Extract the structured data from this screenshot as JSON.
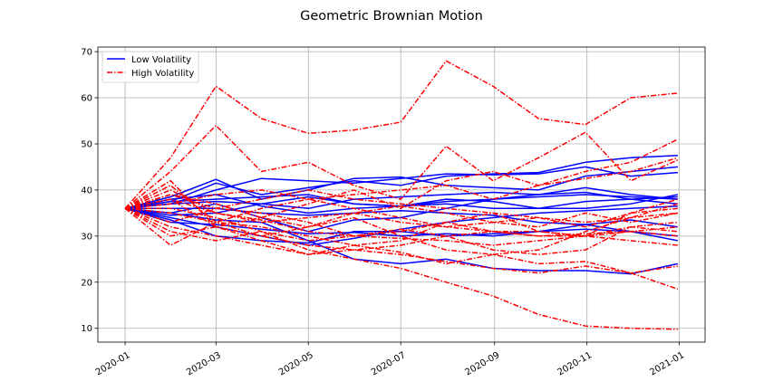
{
  "chart_data": {
    "type": "line",
    "title": "Geometric Brownian Motion",
    "xlabel": "",
    "ylabel": "",
    "x": [
      "2020-01-01",
      "2020-01-31",
      "2020-03-01",
      "2020-03-31",
      "2020-05-01",
      "2020-05-31",
      "2020-07-01",
      "2020-07-31",
      "2020-08-31",
      "2020-09-30",
      "2020-10-31",
      "2020-11-30",
      "2020-12-31"
    ],
    "xticks": [
      "2020-01",
      "2020-03",
      "2020-05",
      "2020-07",
      "2020-09",
      "2020-11",
      "2021-01"
    ],
    "xtick_dates": [
      "2020-01-01",
      "2020-03-01",
      "2020-05-01",
      "2020-07-01",
      "2020-09-01",
      "2020-11-01",
      "2021-01-01"
    ],
    "yticks": [
      10,
      20,
      30,
      40,
      50,
      60,
      70
    ],
    "xlim": [
      "2019-12-14",
      "2021-01-18"
    ],
    "ylim": [
      7,
      71
    ],
    "grid": true,
    "legend": {
      "location": "upper-left",
      "entries": [
        {
          "label": "Low Volatility",
          "color": "#0000ff",
          "style": "solid"
        },
        {
          "label": "High Volatility",
          "color": "#ff0000",
          "style": "dashdot"
        }
      ]
    },
    "groups": [
      {
        "name": "Low Volatility",
        "color": "#0000ff",
        "style": "solid",
        "series": [
          [
            36,
            37.5,
            41.5,
            39,
            40.5,
            42,
            41,
            43,
            43.5,
            43.8,
            46,
            47,
            47.5
          ],
          [
            36,
            38.5,
            42.3,
            38,
            40,
            42.5,
            42.8,
            41,
            40.5,
            40,
            43,
            44,
            45
          ],
          [
            36,
            37,
            40,
            42.5,
            42,
            41.5,
            42.5,
            43.5,
            43.3,
            43.5,
            45,
            43,
            43.8
          ],
          [
            36,
            35,
            37,
            34,
            31,
            33.5,
            34,
            36,
            38,
            39,
            40.5,
            39,
            38
          ],
          [
            36,
            34,
            32,
            30,
            28,
            29.5,
            31.5,
            33,
            34,
            35,
            35.5,
            36,
            36.5
          ],
          [
            36,
            37,
            37.5,
            37,
            36,
            38,
            38.5,
            39,
            39.5,
            39,
            39.5,
            38,
            37
          ],
          [
            36,
            33.5,
            30,
            29,
            28.5,
            31,
            31,
            30,
            30.5,
            31,
            32.5,
            33.5,
            32
          ],
          [
            36,
            35,
            33.5,
            33,
            29,
            25,
            24,
            25,
            23,
            22.5,
            22.5,
            21.8,
            24
          ],
          [
            36,
            34.5,
            35,
            37,
            38.5,
            37,
            36.5,
            38,
            37.5,
            36,
            36,
            37,
            39
          ],
          [
            36,
            38,
            39,
            36.5,
            35,
            36,
            36.5,
            37,
            36,
            36,
            37.5,
            38,
            38.5
          ],
          [
            36,
            37.5,
            38,
            38.5,
            39,
            37,
            36.5,
            37.5,
            38,
            38.5,
            39,
            38.5,
            38
          ],
          [
            36,
            33,
            32.5,
            31.5,
            30.5,
            30.8,
            30,
            30.5,
            30,
            31,
            31.5,
            31,
            30
          ],
          [
            36,
            36,
            36,
            35,
            34.5,
            35,
            35.5,
            35,
            34.5,
            33,
            32.5,
            31,
            29
          ]
        ]
      },
      {
        "name": "High Volatility",
        "color": "#ff0000",
        "style": "dashdot",
        "series": [
          [
            36,
            44,
            54,
            44,
            46,
            41,
            38,
            49.5,
            42,
            47,
            52.5,
            42,
            46.5
          ],
          [
            36,
            47,
            62.5,
            55.5,
            52.3,
            53,
            54.7,
            68,
            62.5,
            55.5,
            54.2,
            60,
            61
          ],
          [
            36,
            42,
            32,
            30,
            28,
            27,
            26,
            24.5,
            23,
            22,
            23.5,
            22,
            23.5
          ],
          [
            36,
            39,
            36,
            35,
            33,
            30,
            31.5,
            30,
            27,
            26,
            27,
            32,
            31
          ],
          [
            36,
            40,
            35,
            33,
            34,
            35,
            33,
            32,
            33,
            34,
            32,
            35,
            36
          ],
          [
            36,
            31,
            29,
            31,
            27,
            25,
            23,
            20,
            17,
            13,
            10.5,
            10,
            9.8
          ],
          [
            36,
            41,
            33,
            32,
            30,
            28,
            26.5,
            24,
            26,
            24,
            24.5,
            22,
            18.5
          ],
          [
            36,
            30,
            32,
            29,
            26,
            28,
            29,
            33,
            35,
            31,
            30,
            35,
            38
          ],
          [
            36,
            38,
            32,
            34,
            37,
            40,
            36,
            42,
            44,
            41,
            42.5,
            44,
            47
          ],
          [
            36,
            35,
            33,
            36,
            38,
            39,
            40,
            41,
            38,
            41,
            44,
            46,
            51
          ],
          [
            36,
            36,
            34,
            31,
            29,
            30,
            29.5,
            29,
            28,
            29,
            30,
            29,
            28
          ],
          [
            36,
            39,
            37,
            34,
            32,
            35,
            36.5,
            35,
            33,
            32,
            35,
            33,
            35
          ],
          [
            36,
            33,
            36,
            38,
            40,
            38,
            37,
            36,
            35,
            34,
            33,
            34,
            35
          ],
          [
            36,
            32,
            30,
            28,
            26,
            27,
            28,
            30,
            31,
            31,
            30,
            32,
            33
          ],
          [
            36,
            38,
            35,
            33.5,
            31,
            30,
            31,
            33,
            31,
            30,
            30.5,
            31,
            32
          ],
          [
            36,
            37,
            39,
            40,
            38,
            36,
            34,
            32,
            31,
            30,
            30,
            31,
            30
          ],
          [
            36,
            28,
            33,
            30,
            32,
            34,
            30,
            27,
            26,
            27,
            31,
            34,
            37
          ]
        ]
      }
    ]
  }
}
